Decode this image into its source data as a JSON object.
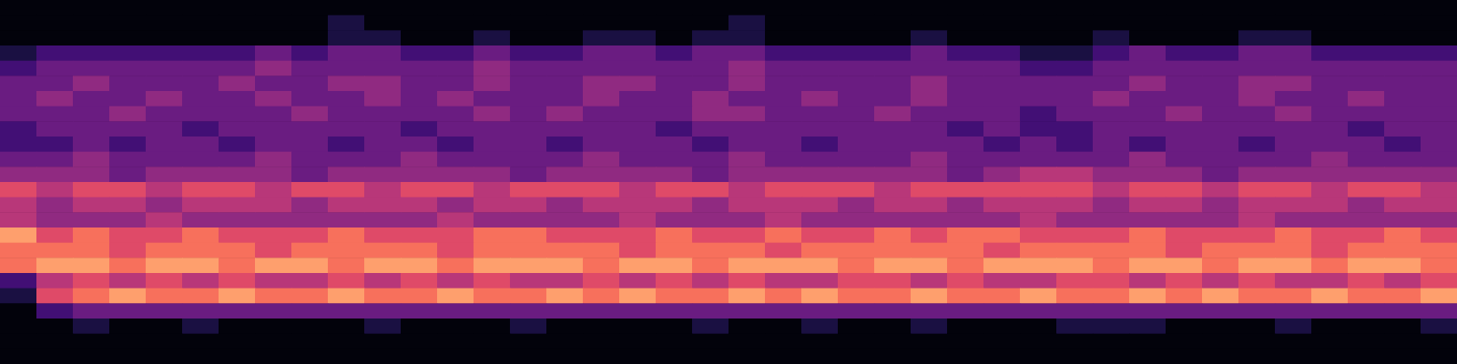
{
  "chart_data": {
    "type": "heatmap",
    "color": "magma",
    "tick_labels": false,
    "z": [
      [
        0,
        0,
        0,
        0,
        0,
        0,
        0,
        0,
        0,
        0,
        0,
        0,
        0,
        0,
        0,
        0,
        0,
        0,
        0,
        0,
        0,
        0,
        0,
        0,
        0,
        0,
        0,
        0,
        0,
        0,
        0,
        0,
        0,
        0,
        0,
        0,
        0,
        0,
        0,
        0
      ],
      [
        0,
        0,
        0,
        0,
        0,
        0,
        0,
        0,
        0,
        1,
        0,
        0,
        0,
        0,
        0,
        0,
        0,
        0,
        0,
        0,
        1,
        0,
        0,
        0,
        0,
        0,
        0,
        0,
        0,
        0,
        0,
        0,
        0,
        0,
        0,
        0,
        0,
        0,
        0,
        0
      ],
      [
        0,
        0,
        0,
        0,
        0,
        0,
        0,
        0,
        0,
        1,
        1,
        0,
        0,
        1,
        0,
        0,
        1,
        1,
        0,
        1,
        1,
        0,
        0,
        0,
        0,
        1,
        0,
        0,
        0,
        0,
        1,
        0,
        0,
        0,
        1,
        1,
        0,
        0,
        0,
        0
      ],
      [
        1,
        2,
        2,
        2,
        2,
        2,
        2,
        3,
        2,
        3,
        3,
        2,
        2,
        3,
        2,
        2,
        3,
        3,
        2,
        3,
        3,
        2,
        2,
        2,
        2,
        3,
        2,
        2,
        1,
        1,
        2,
        3,
        2,
        2,
        3,
        3,
        2,
        2,
        2,
        2
      ],
      [
        2,
        3,
        3,
        3,
        3,
        3,
        3,
        4,
        3,
        3,
        3,
        3,
        3,
        4,
        3,
        3,
        3,
        3,
        3,
        3,
        4,
        3,
        3,
        3,
        3,
        3,
        3,
        3,
        2,
        2,
        3,
        3,
        3,
        3,
        3,
        3,
        3,
        3,
        3,
        3
      ],
      [
        3,
        3,
        4,
        3,
        3,
        3,
        4,
        3,
        3,
        4,
        4,
        3,
        3,
        4,
        3,
        3,
        4,
        4,
        3,
        3,
        4,
        3,
        3,
        3,
        3,
        4,
        3,
        3,
        3,
        3,
        3,
        4,
        3,
        3,
        4,
        4,
        3,
        3,
        3,
        3
      ],
      [
        3,
        4,
        3,
        3,
        4,
        3,
        3,
        4,
        3,
        3,
        4,
        3,
        4,
        3,
        3,
        3,
        4,
        3,
        3,
        4,
        3,
        3,
        4,
        3,
        3,
        4,
        3,
        3,
        3,
        3,
        4,
        3,
        3,
        3,
        4,
        3,
        3,
        4,
        3,
        3
      ],
      [
        3,
        3,
        3,
        4,
        3,
        3,
        3,
        3,
        4,
        3,
        3,
        3,
        3,
        4,
        3,
        4,
        3,
        3,
        3,
        4,
        4,
        3,
        3,
        3,
        4,
        3,
        3,
        3,
        2,
        3,
        3,
        3,
        4,
        3,
        3,
        4,
        3,
        3,
        3,
        3
      ],
      [
        2,
        3,
        3,
        3,
        3,
        2,
        3,
        3,
        3,
        3,
        3,
        2,
        3,
        3,
        3,
        3,
        3,
        3,
        2,
        3,
        3,
        3,
        3,
        3,
        3,
        3,
        2,
        3,
        2,
        2,
        3,
        3,
        3,
        3,
        3,
        3,
        3,
        2,
        3,
        3
      ],
      [
        2,
        2,
        3,
        2,
        3,
        3,
        2,
        3,
        3,
        2,
        3,
        3,
        2,
        3,
        3,
        2,
        3,
        3,
        3,
        2,
        3,
        3,
        2,
        3,
        3,
        3,
        3,
        2,
        3,
        2,
        3,
        2,
        3,
        3,
        2,
        3,
        3,
        3,
        2,
        3
      ],
      [
        3,
        3,
        4,
        3,
        3,
        3,
        3,
        4,
        3,
        3,
        3,
        4,
        3,
        3,
        3,
        3,
        4,
        3,
        3,
        3,
        4,
        3,
        3,
        3,
        3,
        4,
        3,
        3,
        3,
        3,
        3,
        4,
        3,
        3,
        3,
        3,
        4,
        3,
        3,
        3
      ],
      [
        4,
        4,
        4,
        3,
        4,
        4,
        4,
        4,
        3,
        4,
        4,
        4,
        4,
        4,
        3,
        4,
        4,
        4,
        4,
        3,
        4,
        4,
        4,
        4,
        4,
        4,
        3,
        4,
        5,
        5,
        4,
        4,
        4,
        3,
        4,
        4,
        4,
        4,
        4,
        4
      ],
      [
        6,
        5,
        6,
        6,
        5,
        6,
        6,
        5,
        6,
        6,
        5,
        6,
        6,
        5,
        6,
        6,
        6,
        5,
        6,
        6,
        5,
        6,
        6,
        6,
        5,
        6,
        6,
        6,
        6,
        6,
        5,
        6,
        6,
        5,
        6,
        6,
        5,
        6,
        6,
        5
      ],
      [
        5,
        4,
        5,
        5,
        4,
        5,
        5,
        5,
        4,
        5,
        5,
        5,
        4,
        5,
        5,
        4,
        5,
        5,
        5,
        4,
        5,
        5,
        5,
        4,
        5,
        5,
        4,
        5,
        5,
        5,
        4,
        5,
        5,
        4,
        5,
        5,
        5,
        4,
        5,
        5
      ],
      [
        5,
        4,
        4,
        4,
        5,
        4,
        4,
        4,
        4,
        4,
        4,
        4,
        5,
        4,
        4,
        4,
        4,
        5,
        4,
        4,
        4,
        5,
        4,
        4,
        4,
        4,
        4,
        4,
        5,
        4,
        4,
        4,
        4,
        4,
        5,
        4,
        4,
        4,
        4,
        4
      ],
      [
        8,
        6,
        7,
        6,
        6,
        7,
        6,
        6,
        6,
        7,
        6,
        6,
        6,
        7,
        7,
        6,
        6,
        6,
        7,
        6,
        6,
        7,
        6,
        6,
        7,
        6,
        7,
        7,
        6,
        6,
        6,
        7,
        6,
        6,
        6,
        7,
        6,
        6,
        7,
        6
      ],
      [
        7,
        7,
        7,
        6,
        7,
        7,
        7,
        6,
        7,
        7,
        7,
        7,
        6,
        7,
        7,
        7,
        7,
        6,
        7,
        7,
        7,
        6,
        7,
        7,
        7,
        7,
        7,
        6,
        7,
        7,
        7,
        7,
        6,
        7,
        7,
        7,
        6,
        7,
        7,
        7
      ],
      [
        7,
        8,
        8,
        7,
        8,
        8,
        7,
        8,
        8,
        7,
        8,
        8,
        7,
        8,
        8,
        8,
        7,
        8,
        8,
        7,
        8,
        8,
        8,
        7,
        8,
        8,
        7,
        8,
        8,
        8,
        7,
        8,
        8,
        7,
        8,
        8,
        7,
        8,
        8,
        7
      ],
      [
        2,
        5,
        6,
        5,
        6,
        5,
        6,
        5,
        5,
        6,
        5,
        6,
        5,
        6,
        5,
        5,
        6,
        5,
        6,
        5,
        6,
        5,
        5,
        6,
        6,
        5,
        6,
        5,
        5,
        6,
        6,
        5,
        6,
        5,
        6,
        5,
        5,
        6,
        5,
        6
      ],
      [
        1,
        6,
        7,
        8,
        7,
        7,
        8,
        7,
        7,
        8,
        7,
        7,
        8,
        7,
        7,
        8,
        7,
        8,
        7,
        7,
        8,
        7,
        8,
        7,
        7,
        8,
        7,
        7,
        8,
        7,
        7,
        8,
        7,
        8,
        7,
        7,
        8,
        7,
        7,
        8
      ],
      [
        0,
        2,
        3,
        3,
        3,
        3,
        3,
        3,
        3,
        3,
        3,
        3,
        3,
        3,
        3,
        3,
        3,
        3,
        3,
        3,
        3,
        3,
        3,
        3,
        3,
        3,
        3,
        3,
        3,
        3,
        3,
        3,
        3,
        3,
        3,
        3,
        3,
        3,
        3,
        3
      ],
      [
        0,
        0,
        1,
        0,
        0,
        1,
        0,
        0,
        0,
        0,
        1,
        0,
        0,
        0,
        1,
        0,
        0,
        0,
        0,
        1,
        0,
        0,
        1,
        0,
        0,
        1,
        0,
        0,
        0,
        1,
        1,
        1,
        0,
        0,
        0,
        1,
        0,
        0,
        0,
        1
      ],
      [
        0,
        0,
        0,
        0,
        0,
        0,
        0,
        0,
        0,
        0,
        0,
        0,
        0,
        0,
        0,
        0,
        0,
        0,
        0,
        0,
        0,
        0,
        0,
        0,
        0,
        0,
        0,
        0,
        0,
        0,
        0,
        0,
        0,
        0,
        0,
        0,
        0,
        0,
        0,
        0
      ],
      [
        0,
        0,
        0,
        0,
        0,
        0,
        0,
        0,
        0,
        0,
        0,
        0,
        0,
        0,
        0,
        0,
        0,
        0,
        0,
        0,
        0,
        0,
        0,
        0,
        0,
        0,
        0,
        0,
        0,
        0,
        0,
        0,
        0,
        0,
        0,
        0,
        0,
        0,
        0,
        0
      ]
    ]
  }
}
